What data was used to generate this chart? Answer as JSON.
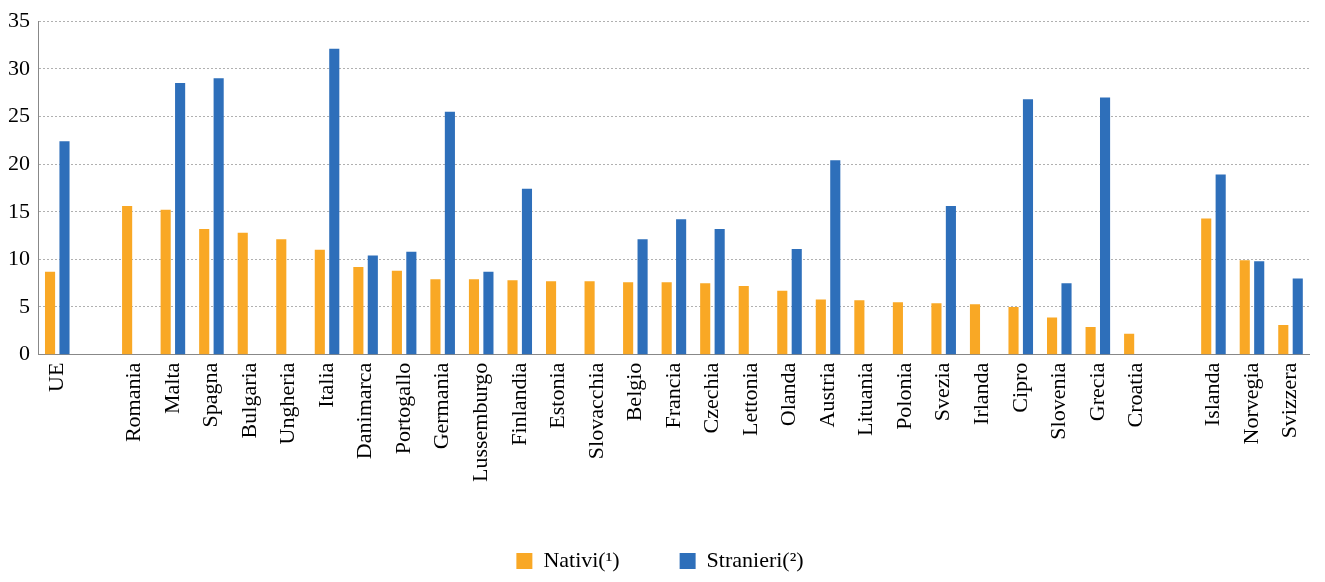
{
  "chart_data": {
    "type": "bar",
    "categories": [
      "UE",
      null,
      "Romania",
      "Malta",
      "Spagna",
      "Bulgaria",
      "Ungheria",
      "Italia",
      "Danimarca",
      "Portogallo",
      "Germania",
      "Lussemburgo",
      "Finlandia",
      "Estonia",
      "Slovacchia",
      "Belgio",
      "Francia",
      "Czechia",
      "Lettonia",
      "Olanda",
      "Austria",
      "Lituania",
      "Polonia",
      "Svezia",
      "Irlanda",
      "Cipro",
      "Slovenia",
      "Grecia",
      "Croatia",
      null,
      "Islanda",
      "Norvegia",
      "Svizzera"
    ],
    "series": [
      {
        "name": "Nativi(¹)",
        "color": "#f9a825",
        "values": [
          8.7,
          null,
          15.6,
          15.2,
          13.2,
          12.8,
          12.1,
          11.0,
          9.2,
          8.8,
          7.9,
          7.9,
          7.8,
          7.7,
          7.7,
          7.6,
          7.6,
          7.5,
          7.2,
          6.7,
          5.8,
          5.7,
          5.5,
          5.4,
          5.3,
          5.0,
          3.9,
          2.9,
          2.2,
          null,
          14.3,
          9.9,
          3.1
        ]
      },
      {
        "name": "Stranieri(²)",
        "color": "#2e6fba",
        "values": [
          22.4,
          null,
          null,
          28.5,
          29.0,
          null,
          null,
          32.1,
          10.4,
          10.8,
          25.5,
          8.7,
          17.4,
          null,
          null,
          12.1,
          14.2,
          13.2,
          null,
          11.1,
          20.4,
          null,
          null,
          15.6,
          null,
          26.8,
          7.5,
          27.0,
          null,
          null,
          18.9,
          9.8,
          8.0
        ]
      }
    ],
    "ylim": [
      0,
      35
    ],
    "yticks": [
      0,
      5,
      10,
      15,
      20,
      25,
      30,
      35
    ],
    "grid": "y",
    "legend": "bottom"
  }
}
